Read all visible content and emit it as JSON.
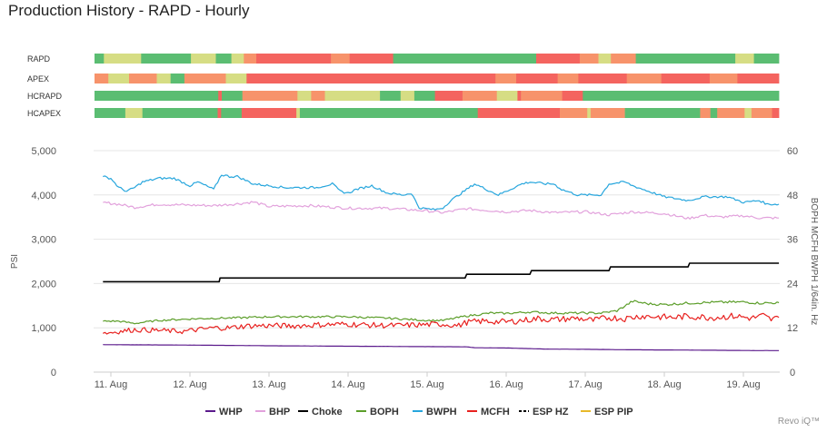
{
  "title": "Production History - RAPD - Hourly",
  "watermark": "Revo iQ™",
  "colors": {
    "WHP": "#5b1a8c",
    "BHP": "#e2a1dc",
    "Choke": "#000000",
    "BOPH": "#5c9e2a",
    "BWPH": "#27a6dd",
    "MCFH": "#e8211f",
    "ESP HZ": "#000000",
    "ESP PIP": "#e8b92a",
    "heat_green": "#5bbd72",
    "heat_yellow": "#d6dd84",
    "heat_orange": "#f7936b",
    "heat_red": "#f4645f"
  },
  "heat_rows": [
    {
      "label": "RAPD",
      "segments": [
        [
          "g",
          0.015
        ],
        [
          "y",
          0.06
        ],
        [
          "g",
          0.08
        ],
        [
          "y",
          0.04
        ],
        [
          "g",
          0.025
        ],
        [
          "y",
          0.02
        ],
        [
          "o",
          0.02
        ],
        [
          "r",
          0.12
        ],
        [
          "o",
          0.03
        ],
        [
          "r",
          0.07
        ],
        [
          "g",
          0.23
        ],
        [
          "r",
          0.07
        ],
        [
          "o",
          0.03
        ],
        [
          "y",
          0.02
        ],
        [
          "o",
          0.04
        ],
        [
          "g",
          0.16
        ],
        [
          "y",
          0.03
        ],
        [
          "g",
          0.04
        ]
      ]
    },
    {
      "label": "APEX",
      "segments": [
        [
          "o",
          0.02
        ],
        [
          "y",
          0.03
        ],
        [
          "o",
          0.04
        ],
        [
          "y",
          0.02
        ],
        [
          "g",
          0.02
        ],
        [
          "o",
          0.06
        ],
        [
          "y",
          0.03
        ],
        [
          "r",
          0.36
        ],
        [
          "o",
          0.03
        ],
        [
          "r",
          0.06
        ],
        [
          "o",
          0.03
        ],
        [
          "r",
          0.07
        ],
        [
          "o",
          0.05
        ],
        [
          "r",
          0.07
        ],
        [
          "o",
          0.04
        ],
        [
          "r",
          0.06
        ]
      ]
    },
    {
      "label": "HCRAPD",
      "segments": [
        [
          "g",
          0.18
        ],
        [
          "r",
          0.005
        ],
        [
          "g",
          0.03
        ],
        [
          "o",
          0.08
        ],
        [
          "y",
          0.02
        ],
        [
          "o",
          0.02
        ],
        [
          "y",
          0.08
        ],
        [
          "g",
          0.03
        ],
        [
          "y",
          0.02
        ],
        [
          "g",
          0.03
        ],
        [
          "r",
          0.04
        ],
        [
          "o",
          0.05
        ],
        [
          "y",
          0.03
        ],
        [
          "r",
          0.005
        ],
        [
          "o",
          0.06
        ],
        [
          "r",
          0.03
        ],
        [
          "g",
          0.285
        ]
      ]
    },
    {
      "label": "HCAPEX",
      "segments": [
        [
          "g",
          0.045
        ],
        [
          "y",
          0.025
        ],
        [
          "g",
          0.11
        ],
        [
          "r",
          0.005
        ],
        [
          "g",
          0.03
        ],
        [
          "r",
          0.08
        ],
        [
          "y",
          0.005
        ],
        [
          "g",
          0.26
        ],
        [
          "r",
          0.12
        ],
        [
          "o",
          0.04
        ],
        [
          "y",
          0.005
        ],
        [
          "o",
          0.05
        ],
        [
          "g",
          0.11
        ],
        [
          "o",
          0.015
        ],
        [
          "g",
          0.01
        ],
        [
          "o",
          0.04
        ],
        [
          "y",
          0.01
        ],
        [
          "o",
          0.03
        ],
        [
          "r",
          0.01
        ]
      ]
    }
  ],
  "chart_data": {
    "type": "line",
    "title": "",
    "x": [
      "11. Aug",
      "12. Aug",
      "13. Aug",
      "14. Aug",
      "15. Aug",
      "16. Aug",
      "17. Aug",
      "18. Aug",
      "19. Aug"
    ],
    "ylabel_left": "PSI",
    "ylabel_right": "BOPH MCFH BWPH 1/64in. Hz",
    "ylim_left": [
      0,
      5000
    ],
    "ylim_right": [
      0,
      60
    ],
    "yticks_left": [
      "0",
      "1,000",
      "2,000",
      "3,000",
      "4,000",
      "5,000"
    ],
    "yticks_right": [
      "0",
      "12",
      "24",
      "36",
      "48",
      "60"
    ],
    "grid": true,
    "legend_position": "bottom-center",
    "series": [
      {
        "name": "WHP",
        "axis": "left",
        "x": [
          10.9,
          12,
          13,
          14,
          15,
          15.5,
          15.6,
          16,
          16.5,
          17,
          17.5,
          18,
          18.5,
          19,
          19.45
        ],
        "values": [
          620,
          610,
          595,
          585,
          575,
          570,
          550,
          545,
          520,
          515,
          505,
          500,
          495,
          488,
          485
        ]
      },
      {
        "name": "BHP",
        "axis": "left",
        "x": [
          10.9,
          11.1,
          11.3,
          11.6,
          12,
          12.3,
          12.6,
          12.8,
          13,
          13.5,
          14,
          14.5,
          15,
          15.2,
          15.5,
          16,
          16.3,
          16.6,
          17,
          17.3,
          17.6,
          18,
          18.3,
          18.5,
          18.7,
          19,
          19.2,
          19.45
        ],
        "values": [
          3830,
          3790,
          3720,
          3790,
          3770,
          3760,
          3800,
          3840,
          3740,
          3760,
          3700,
          3700,
          3640,
          3600,
          3690,
          3620,
          3650,
          3600,
          3620,
          3550,
          3620,
          3580,
          3470,
          3540,
          3500,
          3530,
          3480,
          3480
        ]
      },
      {
        "name": "Choke",
        "axis": "right",
        "x": [
          10.9,
          12.37,
          12.38,
          15.48,
          15.5,
          16.3,
          16.32,
          17.3,
          17.32,
          18.3,
          18.32,
          19.45
        ],
        "values": [
          24.5,
          24.5,
          25.5,
          25.5,
          26.5,
          26.5,
          27.5,
          27.5,
          28.5,
          28.5,
          29.5,
          29.5
        ]
      },
      {
        "name": "BOPH",
        "axis": "right",
        "x": [
          10.9,
          11.1,
          11.3,
          11.6,
          12,
          12.3,
          12.6,
          13,
          13.5,
          14,
          14.5,
          15,
          15.2,
          15.5,
          15.8,
          16,
          16.3,
          16.6,
          17,
          17.2,
          17.4,
          17.6,
          17.8,
          18,
          18.3,
          18.6,
          19,
          19.2,
          19.45
        ],
        "values": [
          13.8,
          13.8,
          13.2,
          14.0,
          14.4,
          14.6,
          14.7,
          15.0,
          15.0,
          15.0,
          14.6,
          14.0,
          14.0,
          15.2,
          16.0,
          15.9,
          16.3,
          16.0,
          16.0,
          16.0,
          16.6,
          19.2,
          18.5,
          18.3,
          18.7,
          18.9,
          19.0,
          18.7,
          18.8
        ]
      },
      {
        "name": "BWPH",
        "axis": "right",
        "x": [
          10.9,
          11.0,
          11.1,
          11.2,
          11.3,
          11.4,
          11.6,
          11.8,
          12.0,
          12.1,
          12.3,
          12.4,
          12.5,
          12.6,
          12.8,
          13.0,
          13.2,
          13.4,
          13.6,
          13.8,
          13.9,
          14.0,
          14.1,
          14.3,
          14.5,
          14.7,
          14.8,
          14.9,
          15.1,
          15.2,
          15.3,
          15.5,
          15.6,
          15.8,
          15.9,
          16.0,
          16.2,
          16.3,
          16.5,
          16.6,
          16.7,
          16.9,
          17.2,
          17.3,
          17.5,
          17.6,
          17.8,
          18.0,
          18.3,
          18.5,
          18.8,
          19.0,
          19.2,
          19.3,
          19.45
        ],
        "values": [
          53,
          52.5,
          50,
          49,
          50,
          51.5,
          52.5,
          52.5,
          50.5,
          51.5,
          49.5,
          53.5,
          53,
          53,
          51,
          50.5,
          50,
          50,
          50,
          51,
          49,
          48.5,
          49.5,
          50.5,
          48.5,
          48,
          48.5,
          44.5,
          44,
          44.5,
          46.5,
          49.5,
          51,
          49,
          48,
          49,
          51,
          51.5,
          51,
          51,
          49.5,
          48,
          48,
          51,
          51.5,
          50.5,
          49,
          47.5,
          46.5,
          47.5,
          47.5,
          46,
          46.5,
          45.5,
          45.5
        ]
      },
      {
        "name": "MCFH",
        "axis": "right",
        "x": [
          10.9,
          11.1,
          11.3,
          11.6,
          11.9,
          12.1,
          12.3,
          12.5,
          12.7,
          13.0,
          13.3,
          13.6,
          14.0,
          14.3,
          14.6,
          14.9,
          15.2,
          15.4,
          15.5,
          15.7,
          16.0,
          16.2,
          16.4,
          16.6,
          16.9,
          17.1,
          17.3,
          17.5,
          17.7,
          17.9,
          18.1,
          18.3,
          18.6,
          18.9,
          19.1,
          19.25,
          19.35,
          19.45
        ],
        "values": [
          10.5,
          11,
          11.5,
          11.3,
          11,
          11.5,
          12,
          12,
          12.5,
          12.6,
          12.5,
          12.8,
          13,
          12.7,
          12.6,
          12.8,
          13,
          12.6,
          13.5,
          13.8,
          13.6,
          14,
          14.5,
          14.2,
          14.6,
          14,
          14.8,
          14.5,
          15.2,
          15,
          14.8,
          15.1,
          14.8,
          15.2,
          14.6,
          15.3,
          14.2,
          14.8
        ]
      }
    ]
  },
  "legend": [
    "WHP",
    "BHP",
    "Choke",
    "BOPH",
    "BWPH",
    "MCFH",
    "ESP HZ",
    "ESP PIP"
  ]
}
